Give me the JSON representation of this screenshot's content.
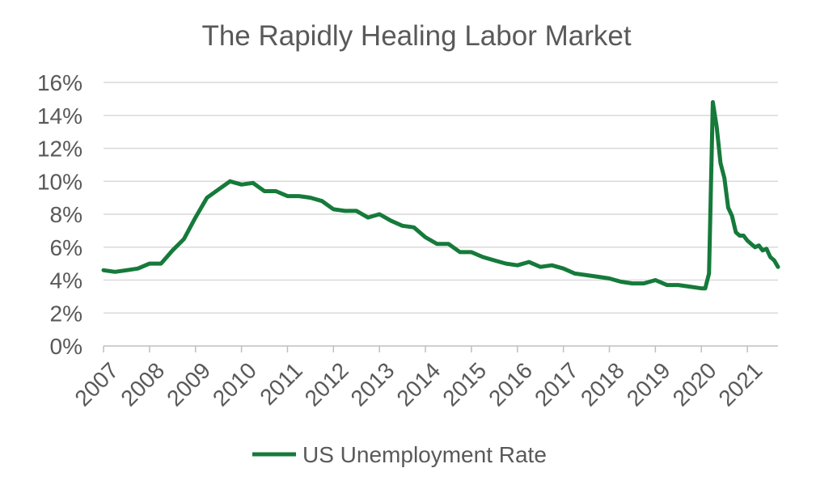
{
  "chart_data": {
    "type": "line",
    "title": "The Rapidly Healing Labor Market",
    "y_ticks": [
      "0%",
      "2%",
      "4%",
      "6%",
      "8%",
      "10%",
      "12%",
      "14%",
      "16%"
    ],
    "x_ticks": [
      "2007",
      "2008",
      "2009",
      "2010",
      "2011",
      "2012",
      "2013",
      "2014",
      "2015",
      "2016",
      "2017",
      "2018",
      "2019",
      "2020",
      "2021"
    ],
    "ylim": [
      0,
      16
    ],
    "xlim": [
      "2007-01",
      "2021-09"
    ],
    "grid": true,
    "legend_position": "bottom",
    "series": [
      {
        "name": "US Unemployment Rate",
        "color": "#157a3a",
        "points": [
          [
            "2007-01",
            4.6
          ],
          [
            "2007-04",
            4.5
          ],
          [
            "2007-07",
            4.6
          ],
          [
            "2007-10",
            4.7
          ],
          [
            "2008-01",
            5.0
          ],
          [
            "2008-04",
            5.0
          ],
          [
            "2008-07",
            5.8
          ],
          [
            "2008-10",
            6.5
          ],
          [
            "2009-01",
            7.8
          ],
          [
            "2009-04",
            9.0
          ],
          [
            "2009-07",
            9.5
          ],
          [
            "2009-10",
            10.0
          ],
          [
            "2010-01",
            9.8
          ],
          [
            "2010-04",
            9.9
          ],
          [
            "2010-07",
            9.4
          ],
          [
            "2010-10",
            9.4
          ],
          [
            "2011-01",
            9.1
          ],
          [
            "2011-04",
            9.1
          ],
          [
            "2011-07",
            9.0
          ],
          [
            "2011-10",
            8.8
          ],
          [
            "2012-01",
            8.3
          ],
          [
            "2012-04",
            8.2
          ],
          [
            "2012-07",
            8.2
          ],
          [
            "2012-10",
            7.8
          ],
          [
            "2013-01",
            8.0
          ],
          [
            "2013-04",
            7.6
          ],
          [
            "2013-07",
            7.3
          ],
          [
            "2013-10",
            7.2
          ],
          [
            "2014-01",
            6.6
          ],
          [
            "2014-04",
            6.2
          ],
          [
            "2014-07",
            6.2
          ],
          [
            "2014-10",
            5.7
          ],
          [
            "2015-01",
            5.7
          ],
          [
            "2015-04",
            5.4
          ],
          [
            "2015-07",
            5.2
          ],
          [
            "2015-10",
            5.0
          ],
          [
            "2016-01",
            4.9
          ],
          [
            "2016-04",
            5.1
          ],
          [
            "2016-07",
            4.8
          ],
          [
            "2016-10",
            4.9
          ],
          [
            "2017-01",
            4.7
          ],
          [
            "2017-04",
            4.4
          ],
          [
            "2017-07",
            4.3
          ],
          [
            "2017-10",
            4.2
          ],
          [
            "2018-01",
            4.1
          ],
          [
            "2018-04",
            3.9
          ],
          [
            "2018-07",
            3.8
          ],
          [
            "2018-10",
            3.8
          ],
          [
            "2019-01",
            4.0
          ],
          [
            "2019-04",
            3.7
          ],
          [
            "2019-07",
            3.7
          ],
          [
            "2019-10",
            3.6
          ],
          [
            "2020-01",
            3.5
          ],
          [
            "2020-02",
            3.5
          ],
          [
            "2020-03",
            4.4
          ],
          [
            "2020-04",
            14.8
          ],
          [
            "2020-05",
            13.3
          ],
          [
            "2020-06",
            11.1
          ],
          [
            "2020-07",
            10.2
          ],
          [
            "2020-08",
            8.4
          ],
          [
            "2020-09",
            7.9
          ],
          [
            "2020-10",
            6.9
          ],
          [
            "2020-11",
            6.7
          ],
          [
            "2020-12",
            6.7
          ],
          [
            "2021-01",
            6.4
          ],
          [
            "2021-02",
            6.2
          ],
          [
            "2021-03",
            6.0
          ],
          [
            "2021-04",
            6.1
          ],
          [
            "2021-05",
            5.8
          ],
          [
            "2021-06",
            5.9
          ],
          [
            "2021-07",
            5.4
          ],
          [
            "2021-08",
            5.2
          ],
          [
            "2021-09",
            4.8
          ]
        ]
      }
    ]
  }
}
